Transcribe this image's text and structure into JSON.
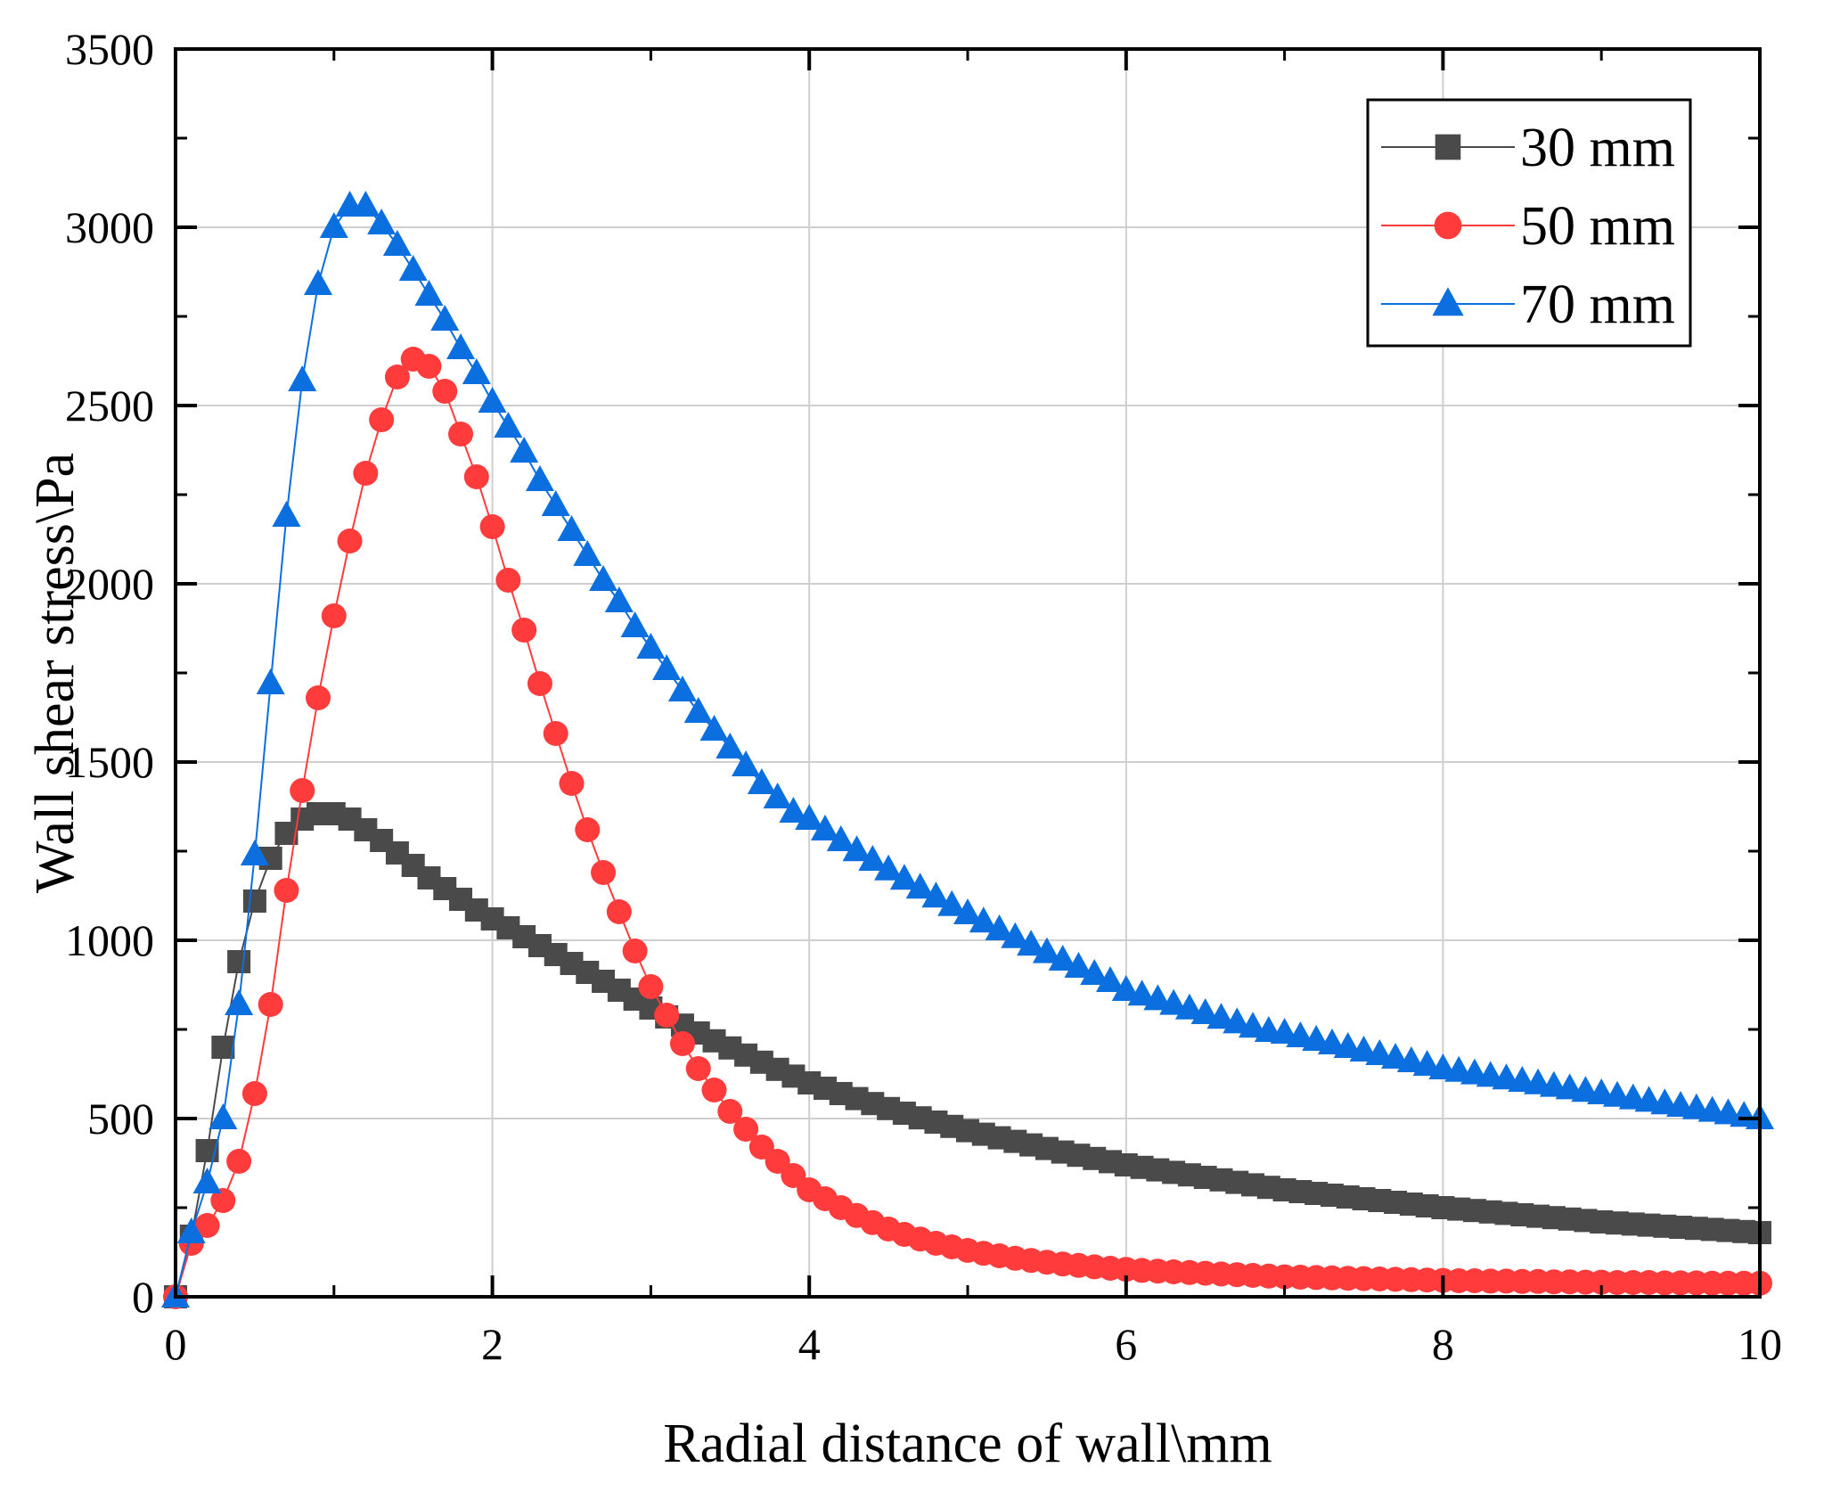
{
  "chart_data": {
    "type": "line",
    "title": "",
    "xlabel": "Radial distance of wall\\mm",
    "ylabel": "Wall shear stress\\Pa",
    "xlim": [
      0,
      10
    ],
    "ylim": [
      0,
      3500
    ],
    "xticks": [
      "0",
      "2",
      "4",
      "6",
      "8",
      "10"
    ],
    "yticks": [
      "0",
      "500",
      "1000",
      "1500",
      "2000",
      "2500",
      "3000",
      "3500"
    ],
    "grid": true,
    "legend_position": "top-right",
    "x_start": 0,
    "x_step": 0.1,
    "series": [
      {
        "name": "30 mm",
        "color": "#4a4a4a",
        "marker": "square",
        "values": [
          0,
          170,
          410,
          700,
          940,
          1110,
          1230,
          1300,
          1340,
          1355,
          1355,
          1340,
          1310,
          1280,
          1245,
          1210,
          1175,
          1145,
          1115,
          1085,
          1060,
          1035,
          1010,
          985,
          960,
          935,
          910,
          885,
          860,
          835,
          810,
          785,
          762,
          740,
          718,
          698,
          678,
          658,
          638,
          619,
          600,
          585,
          570,
          556,
          542,
          528,
          515,
          502,
          490,
          478,
          466,
          456,
          446,
          436,
          426,
          416,
          406,
          397,
          388,
          379,
          370,
          363,
          356,
          349,
          342,
          335,
          328,
          321,
          314,
          307,
          300,
          295,
          290,
          285,
          280,
          275,
          270,
          265,
          260,
          255,
          250,
          246,
          242,
          238,
          234,
          230,
          226,
          222,
          218,
          214,
          210,
          207,
          204,
          201,
          198,
          195,
          192,
          189,
          186,
          183,
          180
        ]
      },
      {
        "name": "50 mm",
        "color": "#ff3b3b",
        "marker": "circle",
        "values": [
          0,
          150,
          200,
          270,
          380,
          570,
          820,
          1140,
          1420,
          1680,
          1910,
          2120,
          2310,
          2460,
          2580,
          2630,
          2610,
          2540,
          2420,
          2300,
          2160,
          2010,
          1870,
          1720,
          1580,
          1440,
          1310,
          1190,
          1080,
          970,
          870,
          790,
          710,
          640,
          580,
          520,
          470,
          420,
          380,
          340,
          300,
          275,
          250,
          228,
          208,
          190,
          175,
          162,
          150,
          140,
          130,
          122,
          115,
          108,
          102,
          97,
          92,
          88,
          84,
          80,
          77,
          74,
          72,
          70,
          68,
          66,
          64,
          62,
          60,
          58,
          56,
          55,
          54,
          53,
          52,
          51,
          50,
          49,
          48,
          47,
          46,
          45,
          45,
          44,
          44,
          43,
          43,
          42,
          42,
          41,
          41,
          40,
          40,
          40,
          39,
          39,
          39,
          38,
          38,
          38,
          38
        ]
      },
      {
        "name": "70 mm",
        "color": "#0b6fe0",
        "marker": "triangle",
        "values": [
          0,
          180,
          320,
          500,
          820,
          1240,
          1720,
          2190,
          2570,
          2840,
          3000,
          3060,
          3060,
          3010,
          2950,
          2880,
          2810,
          2740,
          2660,
          2590,
          2510,
          2440,
          2370,
          2290,
          2220,
          2150,
          2080,
          2010,
          1950,
          1880,
          1820,
          1760,
          1700,
          1640,
          1590,
          1540,
          1490,
          1440,
          1400,
          1360,
          1340,
          1310,
          1280,
          1252,
          1225,
          1198,
          1172,
          1147,
          1122,
          1098,
          1075,
          1052,
          1030,
          1008,
          987,
          966,
          945,
          925,
          905,
          885,
          860,
          847,
          834,
          821,
          808,
          795,
          782,
          769,
          757,
          745,
          740,
          730,
          720,
          710,
          700,
          690,
          680,
          670,
          660,
          650,
          640,
          633,
          626,
          619,
          612,
          605,
          598,
          591,
          584,
          577,
          570,
          563,
          556,
          549,
          542,
          535,
          528,
          521,
          514,
          507,
          500
        ]
      }
    ]
  }
}
